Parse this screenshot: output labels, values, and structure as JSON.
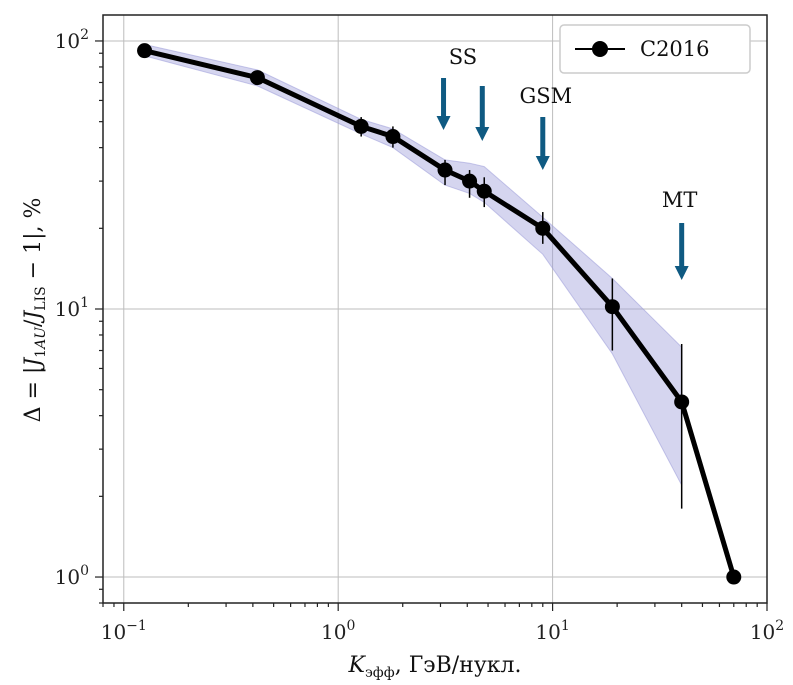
{
  "chart_data": {
    "type": "line",
    "xscale": "log",
    "yscale": "log",
    "xlim": [
      0.08,
      100
    ],
    "ylim": [
      0.8,
      125
    ],
    "grid": true,
    "x_ticks": [
      {
        "value": 0.1,
        "base": "10",
        "exp": "−1"
      },
      {
        "value": 1,
        "base": "10",
        "exp": "0"
      },
      {
        "value": 10,
        "base": "10",
        "exp": "1"
      },
      {
        "value": 100,
        "base": "10",
        "exp": "2"
      }
    ],
    "y_ticks": [
      {
        "value": 1,
        "base": "10",
        "exp": "0"
      },
      {
        "value": 10,
        "base": "10",
        "exp": "1"
      },
      {
        "value": 100,
        "base": "10",
        "exp": "2"
      }
    ],
    "xlabel": {
      "main": "K",
      "sub": "эфф",
      "rest": ", ГэВ/нукл."
    },
    "ylabel": "Δ = |J1AU/JLIS − 1|, %",
    "legend": {
      "position": "top-right",
      "label": "C2016"
    },
    "series": [
      {
        "name": "C2016",
        "color": "#000000",
        "x": [
          0.125,
          0.42,
          1.28,
          1.8,
          3.15,
          4.1,
          4.8,
          9.0,
          19.0,
          40.0,
          70.0
        ],
        "y": [
          92,
          73,
          48,
          44,
          33,
          30,
          27.5,
          20,
          10.2,
          4.5,
          1.0
        ],
        "y_low": [
          null,
          70,
          44,
          40,
          29,
          26,
          24,
          17.5,
          7.0,
          1.8,
          null
        ],
        "y_high": [
          null,
          76,
          52,
          48,
          36,
          33,
          31,
          23,
          13,
          7.4,
          null
        ]
      }
    ],
    "band": {
      "color": "#9a9ad8",
      "x": [
        0.125,
        0.42,
        1.28,
        1.8,
        3.15,
        4.1,
        4.8,
        9.0,
        19.0,
        40.0
      ],
      "y_low": [
        88,
        68,
        45,
        40,
        29,
        27,
        25,
        16,
        6.8,
        2.2
      ],
      "y_high": [
        97,
        78,
        51,
        47,
        36,
        35,
        34,
        22,
        13,
        7.2
      ]
    },
    "annotations": [
      {
        "label": "SS",
        "arrows_x": [
          3.1,
          4.7
        ]
      },
      {
        "label": "GSM",
        "arrows_x": [
          9.0
        ]
      },
      {
        "label": "MT",
        "arrows_x": [
          40.0
        ]
      }
    ],
    "arrow_color": "#0f5a82"
  }
}
